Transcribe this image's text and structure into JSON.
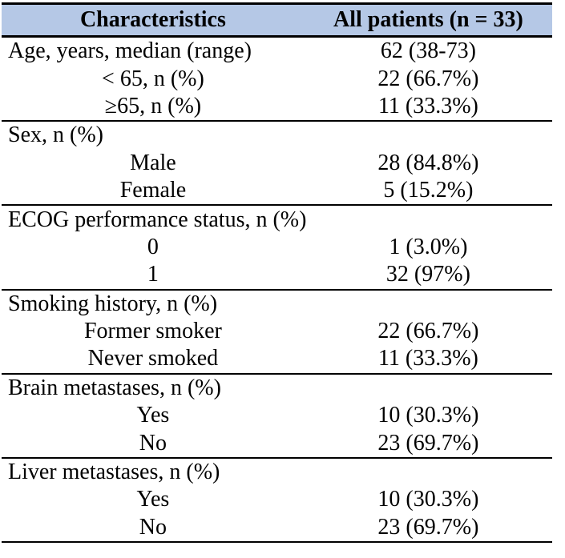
{
  "table": {
    "columns": [
      "Characteristics",
      "All patients (n = 33)"
    ],
    "sections": [
      {
        "label": "Age, years, median (range)",
        "value": "62 (38-73)",
        "rows": [
          {
            "label": "< 65, n (%)",
            "value": "22 (66.7%)"
          },
          {
            "label": "≥65, n (%)",
            "value": "11 (33.3%)"
          }
        ]
      },
      {
        "label": "Sex, n (%)",
        "value": "",
        "rows": [
          {
            "label": "Male",
            "value": "28 (84.8%)"
          },
          {
            "label": "Female",
            "value": "5 (15.2%)"
          }
        ]
      },
      {
        "label": "ECOG performance status, n (%)",
        "value": "",
        "rows": [
          {
            "label": "0",
            "value": "1 (3.0%)"
          },
          {
            "label": "1",
            "value": "32 (97%)"
          }
        ]
      },
      {
        "label": "Smoking history, n (%)",
        "value": "",
        "rows": [
          {
            "label": "Former smoker",
            "value": "22 (66.7%)"
          },
          {
            "label": "Never smoked",
            "value": "11 (33.3%)"
          }
        ]
      },
      {
        "label": "Brain metastases, n (%)",
        "value": "",
        "rows": [
          {
            "label": "Yes",
            "value": "10 (30.3%)"
          },
          {
            "label": "No",
            "value": "23 (69.7%)"
          }
        ]
      },
      {
        "label": "Liver metastases, n (%)",
        "value": "",
        "rows": [
          {
            "label": "Yes",
            "value": "10 (30.3%)"
          },
          {
            "label": "No",
            "value": "23 (69.7%)"
          }
        ]
      }
    ],
    "colors": {
      "header_bg": "#b5c8e6",
      "border": "#000000",
      "text": "#000000"
    }
  }
}
